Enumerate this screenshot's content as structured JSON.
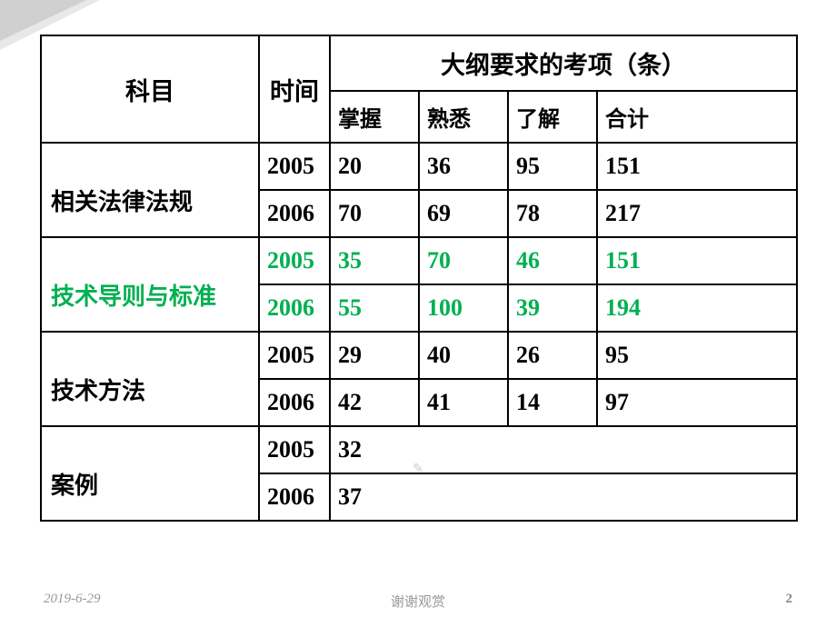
{
  "headers": {
    "subject": "科目",
    "time": "时间",
    "exam_items": "大纲要求的考项（条）",
    "master": "掌握",
    "familiar": "熟悉",
    "understand": "了解",
    "total": "合计"
  },
  "subjects": [
    {
      "name": "相关法律法规",
      "color": "#000000",
      "rows": [
        {
          "year": "2005",
          "master": "20",
          "familiar": "36",
          "understand": "95",
          "total": "151"
        },
        {
          "year": "2006",
          "master": "70",
          "familiar": "69",
          "understand": "78",
          "total": "217"
        }
      ]
    },
    {
      "name": "技术导则与标准",
      "color": "#00b050",
      "rows": [
        {
          "year": "2005",
          "master": "35",
          "familiar": "70",
          "understand": "46",
          "total": "151"
        },
        {
          "year": "2006",
          "master": "55",
          "familiar": "100",
          "understand": "39",
          "total": "194"
        }
      ]
    },
    {
      "name": "技术方法",
      "color": "#000000",
      "rows": [
        {
          "year": "2005",
          "master": "29",
          "familiar": "40",
          "understand": "26",
          "total": "95"
        },
        {
          "year": "2006",
          "master": "42",
          "familiar": "41",
          "understand": "14",
          "total": "97"
        }
      ]
    },
    {
      "name": "案例",
      "color": "#000000",
      "rows": [
        {
          "year": "2005",
          "master": "32",
          "span": true
        },
        {
          "year": "2006",
          "master": "37",
          "span": true
        }
      ]
    }
  ],
  "footer": {
    "date": "2019-6-29",
    "center": "谢谢观赏",
    "page": "2"
  }
}
